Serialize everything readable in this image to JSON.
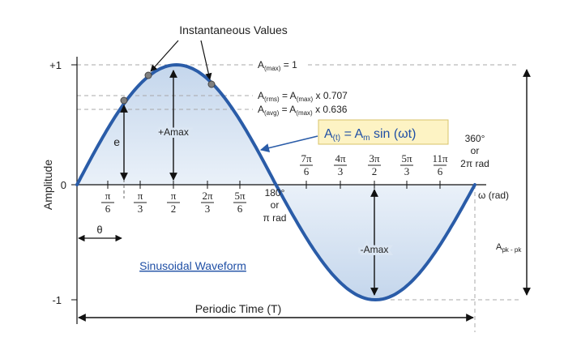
{
  "header": {
    "title": "Instantaneous Values"
  },
  "axis": {
    "y_label": "Amplitude",
    "y_top": "+1",
    "y_zero": "0",
    "y_bottom": "-1",
    "x_label": "ω (rad)"
  },
  "annotations": {
    "a_max": "A(max) = 1",
    "a_rms": "A(rms) = A(max) x 0.707",
    "a_avg": "A(avg) = A(max) x 0.636",
    "a_pk_pk": "Apk - pk",
    "plus_amax": "+Amax",
    "minus_amax": "-Amax",
    "e_label": "e",
    "theta_label": "θ",
    "deg180": "180°",
    "or": "or",
    "pi_rad": "π rad",
    "deg360": "360°",
    "two_pi_rad": "2π rad"
  },
  "formula": {
    "A": "A",
    "t": "(t)",
    "eq": " = A",
    "m": "m",
    "rest": " sin (ωt)",
    "box_color": "#fdf3c4",
    "border_color": "#d8c36a"
  },
  "ticks_lower": [
    {
      "num": "π",
      "den": "6"
    },
    {
      "num": "π",
      "den": "3"
    },
    {
      "num": "π",
      "den": "2"
    },
    {
      "num": "2π",
      "den": "3"
    },
    {
      "num": "5π",
      "den": "6"
    }
  ],
  "ticks_upper": [
    {
      "num": "7π",
      "den": "6"
    },
    {
      "num": "4π",
      "den": "3"
    },
    {
      "num": "3π",
      "den": "2"
    },
    {
      "num": "5π",
      "den": "3"
    },
    {
      "num": "11π",
      "den": "6"
    }
  ],
  "caption": "Sinusoidal Waveform",
  "periodic_time": "Periodic Time (T)",
  "colors": {
    "wave": "#2a5ca8",
    "fill": "#d3e1f1",
    "link": "#1f4fa5",
    "dashed": "#999999"
  }
}
